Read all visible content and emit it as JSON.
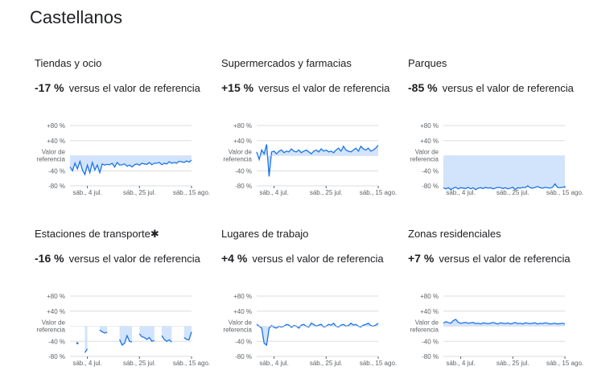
{
  "page_title": "Castellanos",
  "common": {
    "reference_text": "versus el valor de referencia",
    "y_ticks": [
      "+80 %",
      "+40 %",
      "-40 %",
      "-80 %"
    ],
    "baseline_label_line1": "Valor de",
    "baseline_label_line2": "referencia",
    "x_ticks": [
      "sáb., 4 jul.",
      "sáb., 25 jul.",
      "sáb., 15 ago."
    ]
  },
  "colors": {
    "line": "#1a73e8",
    "fill": "#d2e3fc",
    "axis": "#dadce0",
    "text": "#5f6368"
  },
  "chart_data": [
    {
      "type": "line",
      "title": "Tiendas y ocio",
      "change": "-17 %",
      "ylim": [
        -80,
        80
      ],
      "x_range": [
        "2020-06-27",
        "2020-08-15"
      ],
      "values": [
        -30,
        -40,
        -20,
        -35,
        -15,
        -38,
        -50,
        -25,
        -45,
        -18,
        -38,
        -25,
        -45,
        -22,
        -25,
        -23,
        -24,
        -20,
        -30,
        -18,
        -25,
        -24,
        -22,
        -28,
        -25,
        -30,
        -24,
        -22,
        -25,
        -20,
        -22,
        -23,
        -18,
        -24,
        -20,
        -20,
        -18,
        -24,
        -20,
        -22,
        -16,
        -20,
        -18,
        -20,
        -15,
        -16,
        -18,
        -14,
        -17,
        -12
      ]
    },
    {
      "type": "line",
      "title": "Supermercados y farmacias",
      "change": "+15 %",
      "ylim": [
        -80,
        80
      ],
      "x_range": [
        "2020-06-27",
        "2020-08-15"
      ],
      "values": [
        10,
        -10,
        15,
        5,
        30,
        -55,
        10,
        12,
        5,
        12,
        15,
        8,
        12,
        10,
        18,
        12,
        10,
        15,
        8,
        12,
        15,
        10,
        5,
        12,
        15,
        10,
        18,
        12,
        15,
        10,
        12,
        8,
        15,
        20,
        12,
        25,
        15,
        12,
        10,
        15,
        20,
        12,
        25,
        18,
        15,
        20,
        12,
        15,
        20,
        28
      ]
    },
    {
      "type": "line",
      "title": "Parques",
      "change": "-85 %",
      "ylim": [
        -80,
        80
      ],
      "x_range": [
        "2020-06-27",
        "2020-08-15"
      ],
      "values": [
        -85,
        -88,
        -85,
        -90,
        -86,
        -84,
        -88,
        -85,
        -86,
        -87,
        -84,
        -88,
        -85,
        -90,
        -86,
        -85,
        -87,
        -84,
        -86,
        -85,
        -88,
        -86,
        -84,
        -85,
        -87,
        -85,
        -88,
        -86,
        -84,
        -90,
        -85,
        -86,
        -84,
        -85,
        -80,
        -85,
        -86,
        -84,
        -82,
        -85,
        -86,
        -84,
        -85,
        -86,
        -84,
        -75,
        -84,
        -85,
        -84,
        -82
      ]
    },
    {
      "type": "line",
      "title": "Estaciones de transporte",
      "title_mark": "✱",
      "change": "-16 %",
      "ylim": [
        -80,
        80
      ],
      "x_range": [
        "2020-06-27",
        "2020-08-15"
      ],
      "segments": [
        {
          "start": 3,
          "values": [
            -45
          ]
        },
        {
          "start": 6,
          "values": [
            -70,
            -60
          ]
        },
        {
          "start": 12,
          "values": [
            -10,
            -15,
            -18,
            -16
          ]
        },
        {
          "start": 20,
          "values": [
            -35,
            -50,
            -45,
            -25,
            -40,
            -42
          ]
        },
        {
          "start": 28,
          "values": [
            -20,
            -28,
            -30,
            -35,
            -30,
            -40,
            -38
          ]
        },
        {
          "start": 37,
          "values": [
            -25,
            -35,
            -40,
            -36,
            -42
          ]
        },
        {
          "start": 46,
          "values": [
            -30,
            -35,
            -36,
            -15
          ]
        }
      ]
    },
    {
      "type": "line",
      "title": "Lugares de trabajo",
      "change": "+4 %",
      "ylim": [
        -80,
        80
      ],
      "x_range": [
        "2020-06-27",
        "2020-08-15"
      ],
      "values": [
        5,
        0,
        -5,
        -45,
        -50,
        -5,
        2,
        -3,
        -5,
        0,
        -2,
        0,
        5,
        3,
        -3,
        2,
        0,
        -5,
        3,
        5,
        0,
        -2,
        8,
        5,
        0,
        3,
        5,
        -2,
        0,
        5,
        3,
        8,
        0,
        -2,
        3,
        5,
        0,
        2,
        8,
        3,
        5,
        0,
        -2,
        3,
        5,
        8,
        2,
        0,
        3,
        8
      ]
    },
    {
      "type": "line",
      "title": "Zonas residenciales",
      "change": "+7 %",
      "ylim": [
        -80,
        80
      ],
      "x_range": [
        "2020-06-27",
        "2020-08-15"
      ],
      "values": [
        8,
        12,
        10,
        8,
        15,
        18,
        10,
        8,
        9,
        10,
        8,
        9,
        10,
        7,
        8,
        6,
        9,
        8,
        7,
        8,
        10,
        8,
        6,
        9,
        8,
        7,
        9,
        6,
        8,
        10,
        7,
        8,
        6,
        9,
        8,
        7,
        8,
        9,
        6,
        8,
        7,
        9,
        8,
        6,
        7,
        8,
        6,
        7,
        8,
        6
      ]
    }
  ]
}
